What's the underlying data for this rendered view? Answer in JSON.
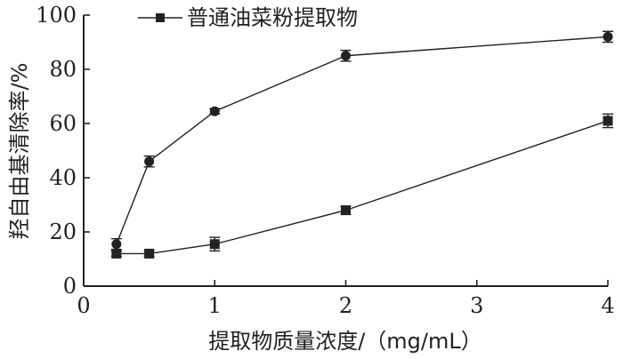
{
  "chart_data": {
    "type": "line",
    "xlabel": "提取物质量浓度/（mg/mL）",
    "ylabel": "羟自由基清除率/%",
    "xlim": [
      0,
      4
    ],
    "ylim": [
      0,
      100
    ],
    "x_ticks": [
      0,
      1,
      2,
      3,
      4
    ],
    "y_ticks": [
      0,
      20,
      40,
      60,
      80,
      100
    ],
    "grid": false,
    "legend_position": "top",
    "series": [
      {
        "name": "",
        "marker": "circle",
        "x": [
          0.25,
          0.5,
          1,
          2,
          4
        ],
        "values": [
          15.5,
          46,
          64.5,
          85,
          92
        ],
        "errors": [
          2,
          2,
          1,
          2,
          2
        ]
      },
      {
        "name": "普通油菜粉提取物",
        "marker": "square",
        "x": [
          0.25,
          0.5,
          1,
          2,
          4
        ],
        "values": [
          12,
          12,
          15.5,
          28,
          61
        ],
        "errors": [
          1,
          1,
          2.5,
          1.5,
          2.5
        ]
      }
    ]
  }
}
